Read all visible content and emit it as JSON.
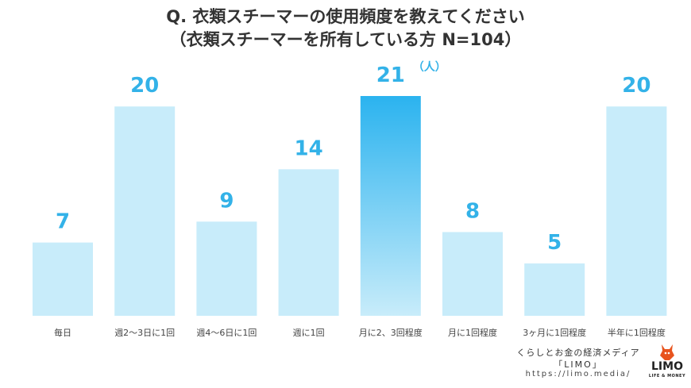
{
  "header": {
    "title_line1": "Q. 衣類スチーマーの使用頻度を教えてください",
    "title_line2": "（衣類スチーマーを所有している方 N=104）"
  },
  "chart_data": {
    "type": "bar",
    "title": "Q. 衣類スチーマーの使用頻度を教えてください",
    "subtitle": "（衣類スチーマーを所有している方 N=104）",
    "unit": "（人）",
    "categories": [
      "毎日",
      "週2〜3日に1回",
      "週4〜6日に1回",
      "週に1回",
      "月に2、3回程度",
      "月に1回程度",
      "3ヶ月に1回程度",
      "半年に1回程度"
    ],
    "values": [
      7,
      20,
      9,
      14,
      21,
      8,
      5,
      20
    ],
    "highlight_index": 4,
    "ylim": [
      0,
      21
    ],
    "grid": false,
    "xlabel": "",
    "ylabel": ""
  },
  "colors": {
    "bar": "#c8ecfa",
    "bar_highlight_top": "#2bb3ef",
    "bar_highlight_bottom": "#c8ecfa",
    "value_text": "#33b2e8",
    "title_text": "#333333"
  },
  "footer": {
    "line1": "くらしとお金の経済メディア",
    "line2": "「LIMO」",
    "line3": "https://limo.media/"
  },
  "logo": {
    "icon": "bull-icon",
    "text": "LIMO",
    "subtext": "LIFE & MONEY"
  }
}
